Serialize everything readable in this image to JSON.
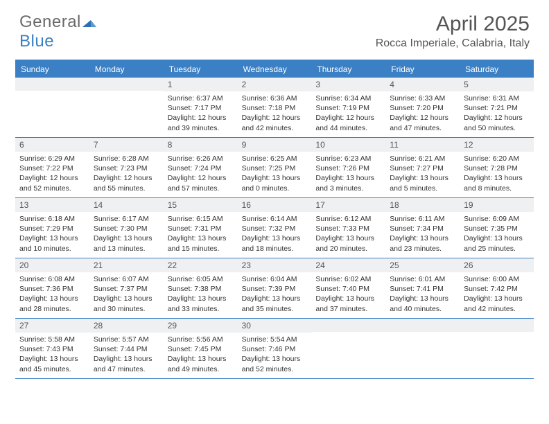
{
  "brand": {
    "part1": "General",
    "part2": "Blue"
  },
  "title": "April 2025",
  "location": "Rocca Imperiale, Calabria, Italy",
  "colors": {
    "accent": "#3b7fc4",
    "headerRow": "#eef0f2",
    "text": "#333333",
    "muted": "#555555",
    "bg": "#ffffff"
  },
  "dayNames": [
    "Sunday",
    "Monday",
    "Tuesday",
    "Wednesday",
    "Thursday",
    "Friday",
    "Saturday"
  ],
  "labels": {
    "sunrise": "Sunrise:",
    "sunset": "Sunset:",
    "daylight": "Daylight:"
  },
  "weeks": [
    [
      null,
      null,
      {
        "n": "1",
        "sunrise": "6:37 AM",
        "sunset": "7:17 PM",
        "daylight": "12 hours and 39 minutes."
      },
      {
        "n": "2",
        "sunrise": "6:36 AM",
        "sunset": "7:18 PM",
        "daylight": "12 hours and 42 minutes."
      },
      {
        "n": "3",
        "sunrise": "6:34 AM",
        "sunset": "7:19 PM",
        "daylight": "12 hours and 44 minutes."
      },
      {
        "n": "4",
        "sunrise": "6:33 AM",
        "sunset": "7:20 PM",
        "daylight": "12 hours and 47 minutes."
      },
      {
        "n": "5",
        "sunrise": "6:31 AM",
        "sunset": "7:21 PM",
        "daylight": "12 hours and 50 minutes."
      }
    ],
    [
      {
        "n": "6",
        "sunrise": "6:29 AM",
        "sunset": "7:22 PM",
        "daylight": "12 hours and 52 minutes."
      },
      {
        "n": "7",
        "sunrise": "6:28 AM",
        "sunset": "7:23 PM",
        "daylight": "12 hours and 55 minutes."
      },
      {
        "n": "8",
        "sunrise": "6:26 AM",
        "sunset": "7:24 PM",
        "daylight": "12 hours and 57 minutes."
      },
      {
        "n": "9",
        "sunrise": "6:25 AM",
        "sunset": "7:25 PM",
        "daylight": "13 hours and 0 minutes."
      },
      {
        "n": "10",
        "sunrise": "6:23 AM",
        "sunset": "7:26 PM",
        "daylight": "13 hours and 3 minutes."
      },
      {
        "n": "11",
        "sunrise": "6:21 AM",
        "sunset": "7:27 PM",
        "daylight": "13 hours and 5 minutes."
      },
      {
        "n": "12",
        "sunrise": "6:20 AM",
        "sunset": "7:28 PM",
        "daylight": "13 hours and 8 minutes."
      }
    ],
    [
      {
        "n": "13",
        "sunrise": "6:18 AM",
        "sunset": "7:29 PM",
        "daylight": "13 hours and 10 minutes."
      },
      {
        "n": "14",
        "sunrise": "6:17 AM",
        "sunset": "7:30 PM",
        "daylight": "13 hours and 13 minutes."
      },
      {
        "n": "15",
        "sunrise": "6:15 AM",
        "sunset": "7:31 PM",
        "daylight": "13 hours and 15 minutes."
      },
      {
        "n": "16",
        "sunrise": "6:14 AM",
        "sunset": "7:32 PM",
        "daylight": "13 hours and 18 minutes."
      },
      {
        "n": "17",
        "sunrise": "6:12 AM",
        "sunset": "7:33 PM",
        "daylight": "13 hours and 20 minutes."
      },
      {
        "n": "18",
        "sunrise": "6:11 AM",
        "sunset": "7:34 PM",
        "daylight": "13 hours and 23 minutes."
      },
      {
        "n": "19",
        "sunrise": "6:09 AM",
        "sunset": "7:35 PM",
        "daylight": "13 hours and 25 minutes."
      }
    ],
    [
      {
        "n": "20",
        "sunrise": "6:08 AM",
        "sunset": "7:36 PM",
        "daylight": "13 hours and 28 minutes."
      },
      {
        "n": "21",
        "sunrise": "6:07 AM",
        "sunset": "7:37 PM",
        "daylight": "13 hours and 30 minutes."
      },
      {
        "n": "22",
        "sunrise": "6:05 AM",
        "sunset": "7:38 PM",
        "daylight": "13 hours and 33 minutes."
      },
      {
        "n": "23",
        "sunrise": "6:04 AM",
        "sunset": "7:39 PM",
        "daylight": "13 hours and 35 minutes."
      },
      {
        "n": "24",
        "sunrise": "6:02 AM",
        "sunset": "7:40 PM",
        "daylight": "13 hours and 37 minutes."
      },
      {
        "n": "25",
        "sunrise": "6:01 AM",
        "sunset": "7:41 PM",
        "daylight": "13 hours and 40 minutes."
      },
      {
        "n": "26",
        "sunrise": "6:00 AM",
        "sunset": "7:42 PM",
        "daylight": "13 hours and 42 minutes."
      }
    ],
    [
      {
        "n": "27",
        "sunrise": "5:58 AM",
        "sunset": "7:43 PM",
        "daylight": "13 hours and 45 minutes."
      },
      {
        "n": "28",
        "sunrise": "5:57 AM",
        "sunset": "7:44 PM",
        "daylight": "13 hours and 47 minutes."
      },
      {
        "n": "29",
        "sunrise": "5:56 AM",
        "sunset": "7:45 PM",
        "daylight": "13 hours and 49 minutes."
      },
      {
        "n": "30",
        "sunrise": "5:54 AM",
        "sunset": "7:46 PM",
        "daylight": "13 hours and 52 minutes."
      },
      null,
      null,
      null
    ]
  ]
}
